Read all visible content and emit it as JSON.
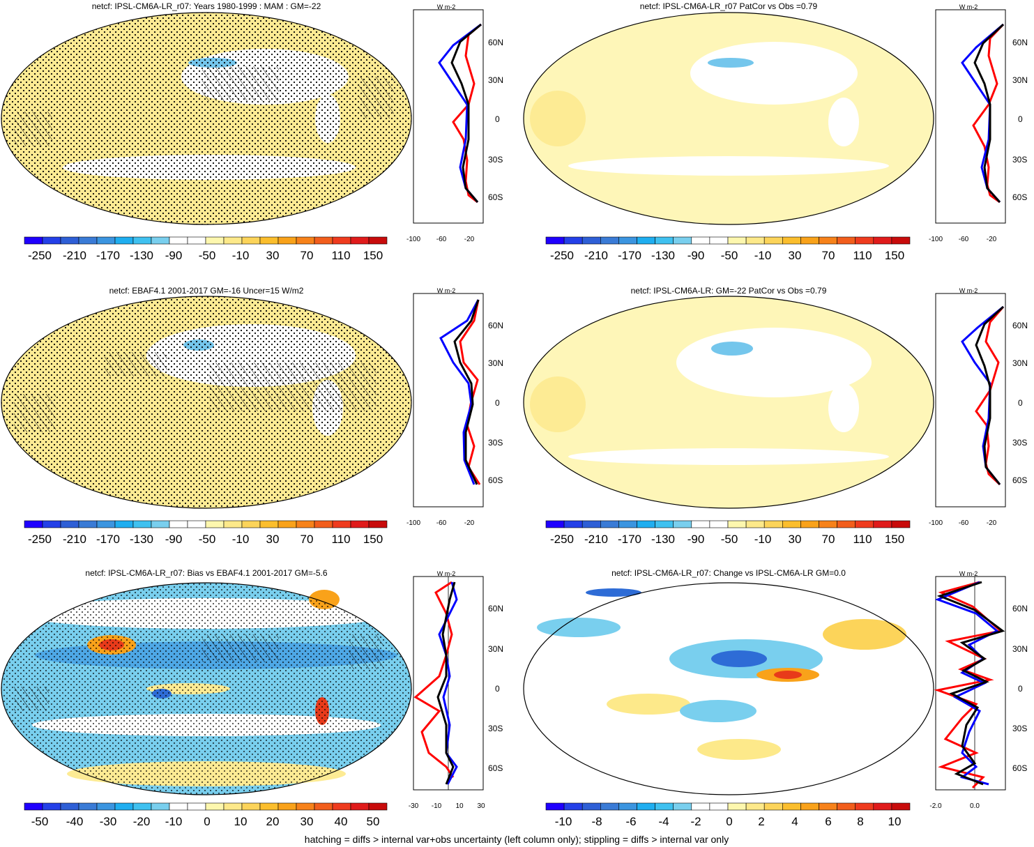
{
  "colors": {
    "cbar_main": [
      "#1f00ff",
      "#2440e8",
      "#2e5fd6",
      "#3a7bd6",
      "#3b95e0",
      "#1faef0",
      "#3fc1f0",
      "#79cfee",
      "#ffffff",
      "#ffffff",
      "#fdf7ae",
      "#fde98a",
      "#fcd45a",
      "#fbbe2d",
      "#f9a21a",
      "#f7821a",
      "#f25e1c",
      "#ef3b1e",
      "#e01b1b",
      "#c80b0b"
    ],
    "cbar_bias": [
      "#1f00ff",
      "#2440e8",
      "#2e5fd6",
      "#3a7bd6",
      "#3b95e0",
      "#1faef0",
      "#3fc1f0",
      "#79cfee",
      "#ffffff",
      "#ffffff",
      "#fdf7ae",
      "#fde98a",
      "#fcd45a",
      "#fbbe2d",
      "#f9a21a",
      "#f7821a",
      "#f25e1c",
      "#ef3b1e",
      "#e01b1b",
      "#c80b0b"
    ],
    "land_yellow": "#fdeb94",
    "ocean_yellow": "#fef6b8",
    "blue_patch": "#74c6ec",
    "mid_blue": "#4ea8e6",
    "deep_blue": "#2e6cd6",
    "orange": "#f9a21a",
    "red": "#e83a1a",
    "line_red": "#ff0000",
    "line_blue": "#0000ff",
    "line_black": "#000000"
  },
  "panels": [
    {
      "title": "netcf: IPSL-CM6A-LR_r07: Years 1980-1999 : MAM : GM=-22",
      "colorbar_labels": [
        "-250",
        "-210",
        "-170",
        "-130",
        "-90",
        "-50",
        "-10",
        "30",
        "70",
        "110",
        "150"
      ],
      "zonal_x_ticks": [
        "-100",
        "-60",
        "-20"
      ],
      "lat_labels": [
        "60N",
        "30N",
        "0",
        "30S",
        "60S"
      ],
      "unit": "W m-2",
      "stippled": true,
      "base": "yellow"
    },
    {
      "title": "netcf: IPSL-CM6A-LR_r07 PatCor vs Obs =0.79",
      "colorbar_labels": [
        "-250",
        "-210",
        "-170",
        "-130",
        "-90",
        "-50",
        "-10",
        "30",
        "70",
        "110",
        "150"
      ],
      "zonal_x_ticks": [
        "-100",
        "-60",
        "-20"
      ],
      "lat_labels": [
        "60N",
        "30N",
        "0",
        "30S",
        "60S"
      ],
      "unit": "W m-2",
      "stippled": false,
      "base": "yellow"
    },
    {
      "title": "netcf: EBAF4.1 2001-2017 GM=-16 Uncer=15 W/m2",
      "colorbar_labels": [
        "-250",
        "-210",
        "-170",
        "-130",
        "-90",
        "-50",
        "-10",
        "30",
        "70",
        "110",
        "150"
      ],
      "zonal_x_ticks": [
        "-100",
        "-60",
        "-20"
      ],
      "lat_labels": [
        "60N",
        "30N",
        "0",
        "30S",
        "60S"
      ],
      "unit": "W m-2",
      "stippled": true,
      "base": "yellow"
    },
    {
      "title": "netcf: IPSL-CM6A-LR: GM=-22 PatCor vs Obs =0.79",
      "colorbar_labels": [
        "-250",
        "-210",
        "-170",
        "-130",
        "-90",
        "-50",
        "-10",
        "30",
        "70",
        "110",
        "150"
      ],
      "zonal_x_ticks": [
        "-100",
        "-60",
        "-20"
      ],
      "lat_labels": [
        "60N",
        "30N",
        "0",
        "30S",
        "60S"
      ],
      "unit": "W m-2",
      "stippled": false,
      "base": "yellow"
    },
    {
      "title": "netcf: IPSL-CM6A-LR_r07: Bias vs EBAF4.1 2001-2017 GM=-5.6",
      "colorbar_labels": [
        "-50",
        "-40",
        "-30",
        "-20",
        "-10",
        "0",
        "10",
        "20",
        "30",
        "40",
        "50"
      ],
      "zonal_x_ticks": [
        "-30",
        "-10",
        "10",
        "30"
      ],
      "lat_labels": [
        "60N",
        "30N",
        "0",
        "30S",
        "60S"
      ],
      "unit": "W m-2",
      "stippled": true,
      "base": "blue"
    },
    {
      "title": "netcf: IPSL-CM6A-LR_r07: Change vs IPSL-CM6A-LR GM=0.0",
      "colorbar_labels": [
        "-10",
        "-8",
        "-6",
        "-4",
        "-2",
        "0",
        "2",
        "4",
        "6",
        "8",
        "10"
      ],
      "zonal_x_ticks": [
        "-2.0",
        "0.0"
      ],
      "lat_labels": [
        "60N",
        "30N",
        "0",
        "30S",
        "60S"
      ],
      "unit": "W m-2",
      "stippled": false,
      "base": "change"
    }
  ],
  "footer": "hatching = diffs > internal var+obs uncertainty (left column only); stippling = diffs > internal var only"
}
